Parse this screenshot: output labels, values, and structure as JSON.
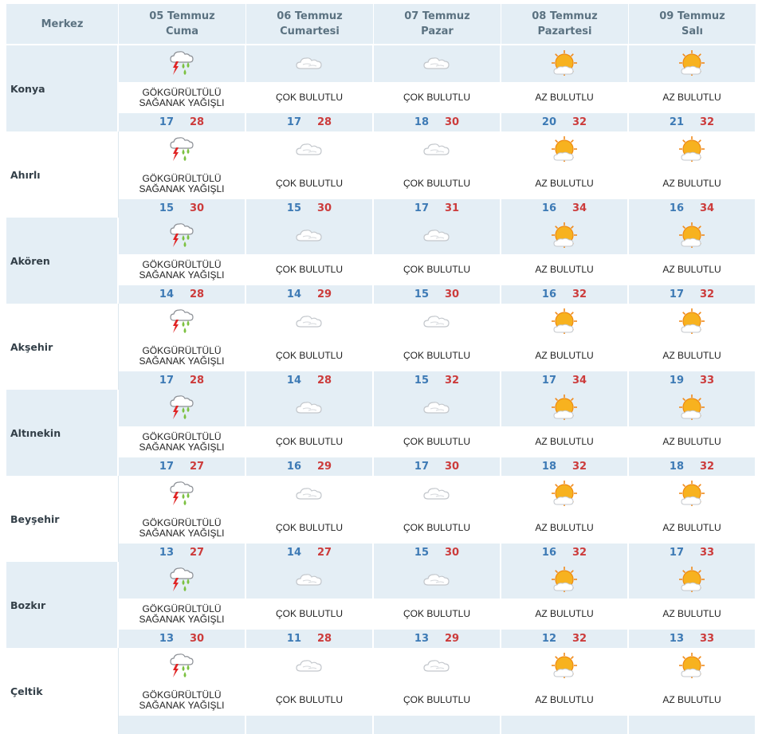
{
  "header": {
    "first": "Merkez",
    "days": [
      {
        "date": "05 Temmuz",
        "day": "Cuma"
      },
      {
        "date": "06 Temmuz",
        "day": "Cumartesi"
      },
      {
        "date": "07 Temmuz",
        "day": "Pazar"
      },
      {
        "date": "08 Temmuz",
        "day": "Pazartesi"
      },
      {
        "date": "09 Temmuz",
        "day": "Salı"
      }
    ]
  },
  "colors": {
    "header_bg": "#e4eef5",
    "min_temp": "#3d7ab5",
    "max_temp": "#cc3b3b"
  },
  "rows": [
    {
      "city": "Konya",
      "days": [
        {
          "icon": "thunderstorm-rain-icon",
          "desc1": "GÖKGÜRÜLTÜLÜ",
          "desc2": "SAĞANAK YAĞIŞLI",
          "min": "17",
          "max": "28"
        },
        {
          "icon": "cloud-icon",
          "desc1": "ÇOK BULUTLU",
          "desc2": "",
          "min": "17",
          "max": "28"
        },
        {
          "icon": "cloud-icon",
          "desc1": "ÇOK BULUTLU",
          "desc2": "",
          "min": "18",
          "max": "30"
        },
        {
          "icon": "sun-cloud-icon",
          "desc1": "AZ BULUTLU",
          "desc2": "",
          "min": "20",
          "max": "32"
        },
        {
          "icon": "sun-cloud-icon",
          "desc1": "AZ BULUTLU",
          "desc2": "",
          "min": "21",
          "max": "32"
        }
      ]
    },
    {
      "city": "Ahırlı",
      "days": [
        {
          "icon": "thunderstorm-rain-icon",
          "desc1": "GÖKGÜRÜLTÜLÜ",
          "desc2": "SAĞANAK YAĞIŞLI",
          "min": "15",
          "max": "30"
        },
        {
          "icon": "cloud-icon",
          "desc1": "ÇOK BULUTLU",
          "desc2": "",
          "min": "15",
          "max": "30"
        },
        {
          "icon": "cloud-icon",
          "desc1": "ÇOK BULUTLU",
          "desc2": "",
          "min": "17",
          "max": "31"
        },
        {
          "icon": "sun-cloud-icon",
          "desc1": "AZ BULUTLU",
          "desc2": "",
          "min": "16",
          "max": "34"
        },
        {
          "icon": "sun-cloud-icon",
          "desc1": "AZ BULUTLU",
          "desc2": "",
          "min": "16",
          "max": "34"
        }
      ]
    },
    {
      "city": "Akören",
      "days": [
        {
          "icon": "thunderstorm-rain-icon",
          "desc1": "GÖKGÜRÜLTÜLÜ",
          "desc2": "SAĞANAK YAĞIŞLI",
          "min": "14",
          "max": "28"
        },
        {
          "icon": "cloud-icon",
          "desc1": "ÇOK BULUTLU",
          "desc2": "",
          "min": "14",
          "max": "29"
        },
        {
          "icon": "cloud-icon",
          "desc1": "ÇOK BULUTLU",
          "desc2": "",
          "min": "15",
          "max": "30"
        },
        {
          "icon": "sun-cloud-icon",
          "desc1": "AZ BULUTLU",
          "desc2": "",
          "min": "16",
          "max": "32"
        },
        {
          "icon": "sun-cloud-icon",
          "desc1": "AZ BULUTLU",
          "desc2": "",
          "min": "17",
          "max": "32"
        }
      ]
    },
    {
      "city": "Akşehir",
      "days": [
        {
          "icon": "thunderstorm-rain-icon",
          "desc1": "GÖKGÜRÜLTÜLÜ",
          "desc2": "SAĞANAK YAĞIŞLI",
          "min": "17",
          "max": "28"
        },
        {
          "icon": "cloud-icon",
          "desc1": "ÇOK BULUTLU",
          "desc2": "",
          "min": "14",
          "max": "28"
        },
        {
          "icon": "cloud-icon",
          "desc1": "ÇOK BULUTLU",
          "desc2": "",
          "min": "15",
          "max": "32"
        },
        {
          "icon": "sun-cloud-icon",
          "desc1": "AZ BULUTLU",
          "desc2": "",
          "min": "17",
          "max": "34"
        },
        {
          "icon": "sun-cloud-icon",
          "desc1": "AZ BULUTLU",
          "desc2": "",
          "min": "19",
          "max": "33"
        }
      ]
    },
    {
      "city": "Altınekin",
      "days": [
        {
          "icon": "thunderstorm-rain-icon",
          "desc1": "GÖKGÜRÜLTÜLÜ",
          "desc2": "SAĞANAK YAĞIŞLI",
          "min": "17",
          "max": "27"
        },
        {
          "icon": "cloud-icon",
          "desc1": "ÇOK BULUTLU",
          "desc2": "",
          "min": "16",
          "max": "29"
        },
        {
          "icon": "cloud-icon",
          "desc1": "ÇOK BULUTLU",
          "desc2": "",
          "min": "17",
          "max": "30"
        },
        {
          "icon": "sun-cloud-icon",
          "desc1": "AZ BULUTLU",
          "desc2": "",
          "min": "18",
          "max": "32"
        },
        {
          "icon": "sun-cloud-icon",
          "desc1": "AZ BULUTLU",
          "desc2": "",
          "min": "18",
          "max": "32"
        }
      ]
    },
    {
      "city": "Beyşehir",
      "days": [
        {
          "icon": "thunderstorm-rain-icon",
          "desc1": "GÖKGÜRÜLTÜLÜ",
          "desc2": "SAĞANAK YAĞIŞLI",
          "min": "13",
          "max": "27"
        },
        {
          "icon": "cloud-icon",
          "desc1": "ÇOK BULUTLU",
          "desc2": "",
          "min": "14",
          "max": "27"
        },
        {
          "icon": "cloud-icon",
          "desc1": "ÇOK BULUTLU",
          "desc2": "",
          "min": "15",
          "max": "30"
        },
        {
          "icon": "sun-cloud-icon",
          "desc1": "AZ BULUTLU",
          "desc2": "",
          "min": "16",
          "max": "32"
        },
        {
          "icon": "sun-cloud-icon",
          "desc1": "AZ BULUTLU",
          "desc2": "",
          "min": "17",
          "max": "33"
        }
      ]
    },
    {
      "city": "Bozkır",
      "days": [
        {
          "icon": "thunderstorm-rain-icon",
          "desc1": "GÖKGÜRÜLTÜLÜ",
          "desc2": "SAĞANAK YAĞIŞLI",
          "min": "13",
          "max": "30"
        },
        {
          "icon": "cloud-icon",
          "desc1": "ÇOK BULUTLU",
          "desc2": "",
          "min": "11",
          "max": "28"
        },
        {
          "icon": "cloud-icon",
          "desc1": "ÇOK BULUTLU",
          "desc2": "",
          "min": "13",
          "max": "29"
        },
        {
          "icon": "sun-cloud-icon",
          "desc1": "AZ BULUTLU",
          "desc2": "",
          "min": "12",
          "max": "32"
        },
        {
          "icon": "sun-cloud-icon",
          "desc1": "AZ BULUTLU",
          "desc2": "",
          "min": "13",
          "max": "33"
        }
      ]
    },
    {
      "city": "Çeltik",
      "days": [
        {
          "icon": "thunderstorm-rain-icon",
          "desc1": "GÖKGÜRÜLTÜLÜ",
          "desc2": "SAĞANAK YAĞIŞLI",
          "min": "",
          "max": ""
        },
        {
          "icon": "cloud-icon",
          "desc1": "ÇOK BULUTLU",
          "desc2": "",
          "min": "",
          "max": ""
        },
        {
          "icon": "cloud-icon",
          "desc1": "ÇOK BULUTLU",
          "desc2": "",
          "min": "",
          "max": ""
        },
        {
          "icon": "sun-cloud-icon",
          "desc1": "AZ BULUTLU",
          "desc2": "",
          "min": "",
          "max": ""
        },
        {
          "icon": "sun-cloud-icon",
          "desc1": "AZ BULUTLU",
          "desc2": "",
          "min": "",
          "max": ""
        }
      ]
    }
  ]
}
